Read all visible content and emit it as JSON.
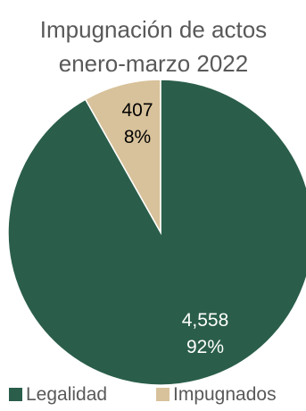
{
  "chart_data": {
    "type": "pie",
    "title_lines": [
      "Impugnación de actos",
      "enero-marzo 2022"
    ],
    "slices": [
      {
        "name": "Legalidad",
        "value": 4558,
        "value_label": "4,558",
        "percent_label": "92%",
        "color": "#2a5e4a",
        "label_color": "#ffffff"
      },
      {
        "name": "Impugnados",
        "value": 407,
        "value_label": "407",
        "percent_label": "8%",
        "color": "#d8c29b",
        "label_color": "#000000"
      }
    ],
    "legend": {
      "placement": "bottom",
      "items": [
        "Legalidad",
        "Impugnados"
      ]
    }
  }
}
